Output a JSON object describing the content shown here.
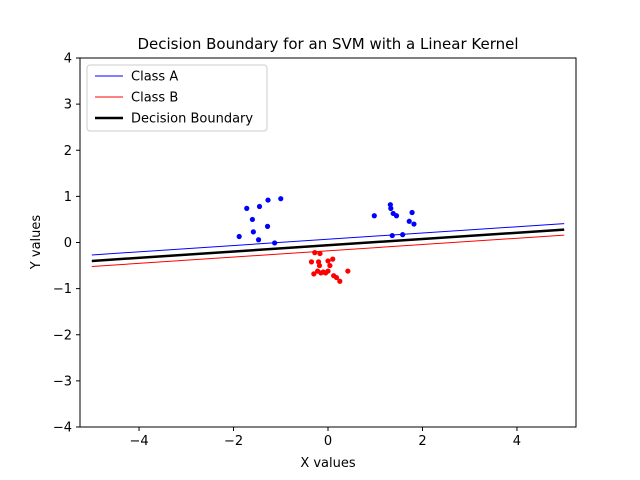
{
  "chart_data": {
    "type": "scatter",
    "title": "Decision Boundary for an SVM with a Linear Kernel",
    "xlabel": "X values",
    "ylabel": "Y values",
    "xlim": [
      -5.25,
      5.25
    ],
    "ylim": [
      -4,
      4
    ],
    "xticks": [
      -4,
      -2,
      0,
      2,
      4
    ],
    "xtick_labels": [
      "−4",
      "−2",
      "0",
      "2",
      "4"
    ],
    "yticks": [
      -4,
      -3,
      -2,
      -1,
      0,
      1,
      2,
      3,
      4
    ],
    "ytick_labels": [
      "−4",
      "−3",
      "−2",
      "−1",
      "0",
      "1",
      "2",
      "3",
      "4"
    ],
    "grid": false,
    "legend_position": "top-left",
    "legend": [
      {
        "label": "Class A",
        "color": "#0000ff",
        "style": "line-thin"
      },
      {
        "label": "Class B",
        "color": "#ff0000",
        "style": "line-thin"
      },
      {
        "label": "Decision Boundary",
        "color": "#000000",
        "style": "line-thick"
      }
    ],
    "lines": [
      {
        "name": "Class A",
        "color": "#0000ff",
        "width": 1,
        "x": [
          -5,
          5
        ],
        "y": [
          -0.27,
          0.41
        ]
      },
      {
        "name": "Class B",
        "color": "#ff0000",
        "width": 1,
        "x": [
          -5,
          5
        ],
        "y": [
          -0.52,
          0.16
        ]
      },
      {
        "name": "Decision Boundary",
        "color": "#000000",
        "width": 2.5,
        "x": [
          -5,
          5
        ],
        "y": [
          -0.4,
          0.28
        ]
      }
    ],
    "series": [
      {
        "name": "Class A",
        "color": "#0000ff",
        "points": [
          [
            -1.0,
            0.95
          ],
          [
            -1.27,
            0.92
          ],
          [
            -1.72,
            0.74
          ],
          [
            -1.45,
            0.78
          ],
          [
            -1.6,
            0.5
          ],
          [
            -1.58,
            0.23
          ],
          [
            -1.28,
            0.35
          ],
          [
            -1.47,
            0.06
          ],
          [
            -1.88,
            0.13
          ],
          [
            -1.13,
            -0.01
          ],
          [
            1.32,
            0.82
          ],
          [
            1.33,
            0.74
          ],
          [
            1.38,
            0.63
          ],
          [
            1.45,
            0.58
          ],
          [
            0.98,
            0.58
          ],
          [
            1.78,
            0.65
          ],
          [
            1.72,
            0.46
          ],
          [
            1.82,
            0.4
          ],
          [
            1.58,
            0.17
          ],
          [
            1.36,
            0.15
          ]
        ]
      },
      {
        "name": "Class B",
        "color": "#ff0000",
        "points": [
          [
            -0.28,
            -0.22
          ],
          [
            -0.17,
            -0.24
          ],
          [
            -0.35,
            -0.42
          ],
          [
            -0.2,
            -0.42
          ],
          [
            -0.18,
            -0.5
          ],
          [
            0.0,
            -0.4
          ],
          [
            0.1,
            -0.36
          ],
          [
            0.04,
            -0.5
          ],
          [
            -0.22,
            -0.62
          ],
          [
            -0.1,
            -0.64
          ],
          [
            0.0,
            -0.62
          ],
          [
            -0.05,
            -0.66
          ],
          [
            -0.15,
            -0.66
          ],
          [
            -0.3,
            -0.68
          ],
          [
            0.12,
            -0.72
          ],
          [
            0.18,
            -0.76
          ],
          [
            0.25,
            -0.84
          ],
          [
            0.42,
            -0.62
          ]
        ]
      }
    ]
  }
}
